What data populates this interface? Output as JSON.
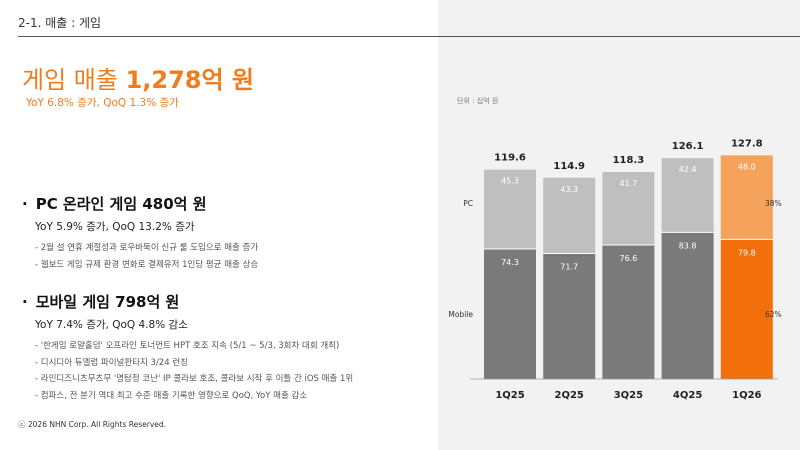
{
  "header": {
    "section": "2-1.   매출 : 게임"
  },
  "headline": {
    "prefix": "게임 매출 ",
    "value": "1,278억 원",
    "sub": "YoY 6.8% 증가, QoQ 1.3% 증가"
  },
  "pc": {
    "bullet": "·",
    "title": "PC 온라인 게임 480억 원",
    "yoy": "YoY 5.9% 증가, QoQ 13.2% 증가",
    "notes": [
      "- 2월 설 연휴 계절성과 로우바둑이 신규 룰 도입으로 매출 증가",
      "- 웹보드 게임 규제 환경 변화로 결제유저 1인당 평균 매출 상승"
    ]
  },
  "mobile": {
    "bullet": "·",
    "title": "모바일 게임 798억 원",
    "yoy": "YoY 7.4% 증가, QoQ 4.8% 감소",
    "notes": [
      "- '한게임 로얄홀덤' 오프라인 토너먼트 HPT 호조 지속 (5/1 ~ 5/3,  3회차 대회 개최)",
      "- 디시디아 듀엘럼 파이널판타지 3/24 런칭",
      "- 라인디즈니츠무츠무 '명탐정 코난' IP 콜라보 호조, 콜라보 시작 후 이틀 간 iOS 매출 1위",
      "- 컴파스, 전 분기 역대 최고 수준 매출 기록한 영향으로 QoQ, YoY 매출 감소"
    ]
  },
  "footer": "ⓒ 2026 NHN Corp. All Rights Reserved.",
  "unit_label": "단위 : 십억 원",
  "colors": {
    "accent": "#f07c1e",
    "pc_gray": "#bfbfbf",
    "mobile_gray": "#7a7a7a",
    "pc_orange": "#f5a35c",
    "mobile_orange": "#f36f0c",
    "panel_bg": "#f2f2f2"
  },
  "chart_data": {
    "type": "bar",
    "stacked": true,
    "categories": [
      "1Q25",
      "2Q25",
      "3Q25",
      "4Q25",
      "1Q26"
    ],
    "series": [
      {
        "name": "Mobile",
        "values": [
          74.3,
          71.7,
          76.6,
          83.8,
          79.8
        ]
      },
      {
        "name": "PC",
        "values": [
          45.3,
          43.3,
          41.7,
          42.4,
          48.0
        ]
      }
    ],
    "totals": [
      119.6,
      114.9,
      118.3,
      126.1,
      127.8
    ],
    "total_labels": [
      "119.6",
      "114.9",
      "118.3",
      "126.1",
      "127.8"
    ],
    "value_labels": {
      "Mobile": [
        "74.3",
        "71.7",
        "76.6",
        "83.8",
        "79.8"
      ],
      "PC": [
        "45.3",
        "43.3",
        "41.7",
        "42.4",
        "48.0"
      ]
    },
    "share_labels": {
      "PC": "38%",
      "Mobile": "62%"
    },
    "highlight_index": 4,
    "legend": "left",
    "grid": false
  }
}
